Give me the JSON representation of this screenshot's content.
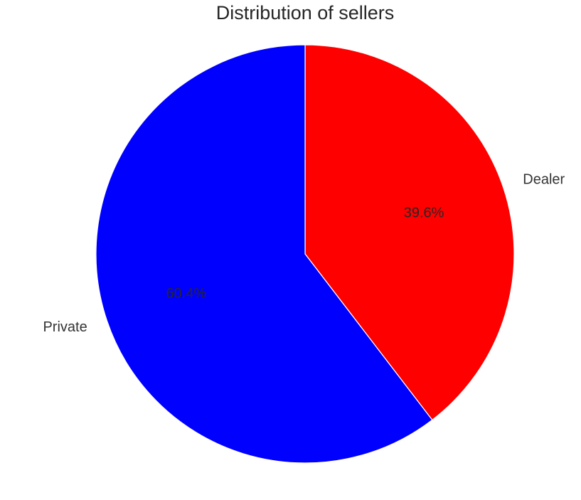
{
  "chart_data": {
    "type": "pie",
    "title": "Distribution of sellers",
    "categories": [
      "Dealer",
      "Private"
    ],
    "values": [
      39.6,
      60.4
    ],
    "percent_labels": [
      "39.6%",
      "60.4%"
    ],
    "colors": [
      "#ff0000",
      "#0000ff"
    ],
    "start_angle_deg": 90,
    "direction": "clockwise",
    "legend": "none"
  }
}
